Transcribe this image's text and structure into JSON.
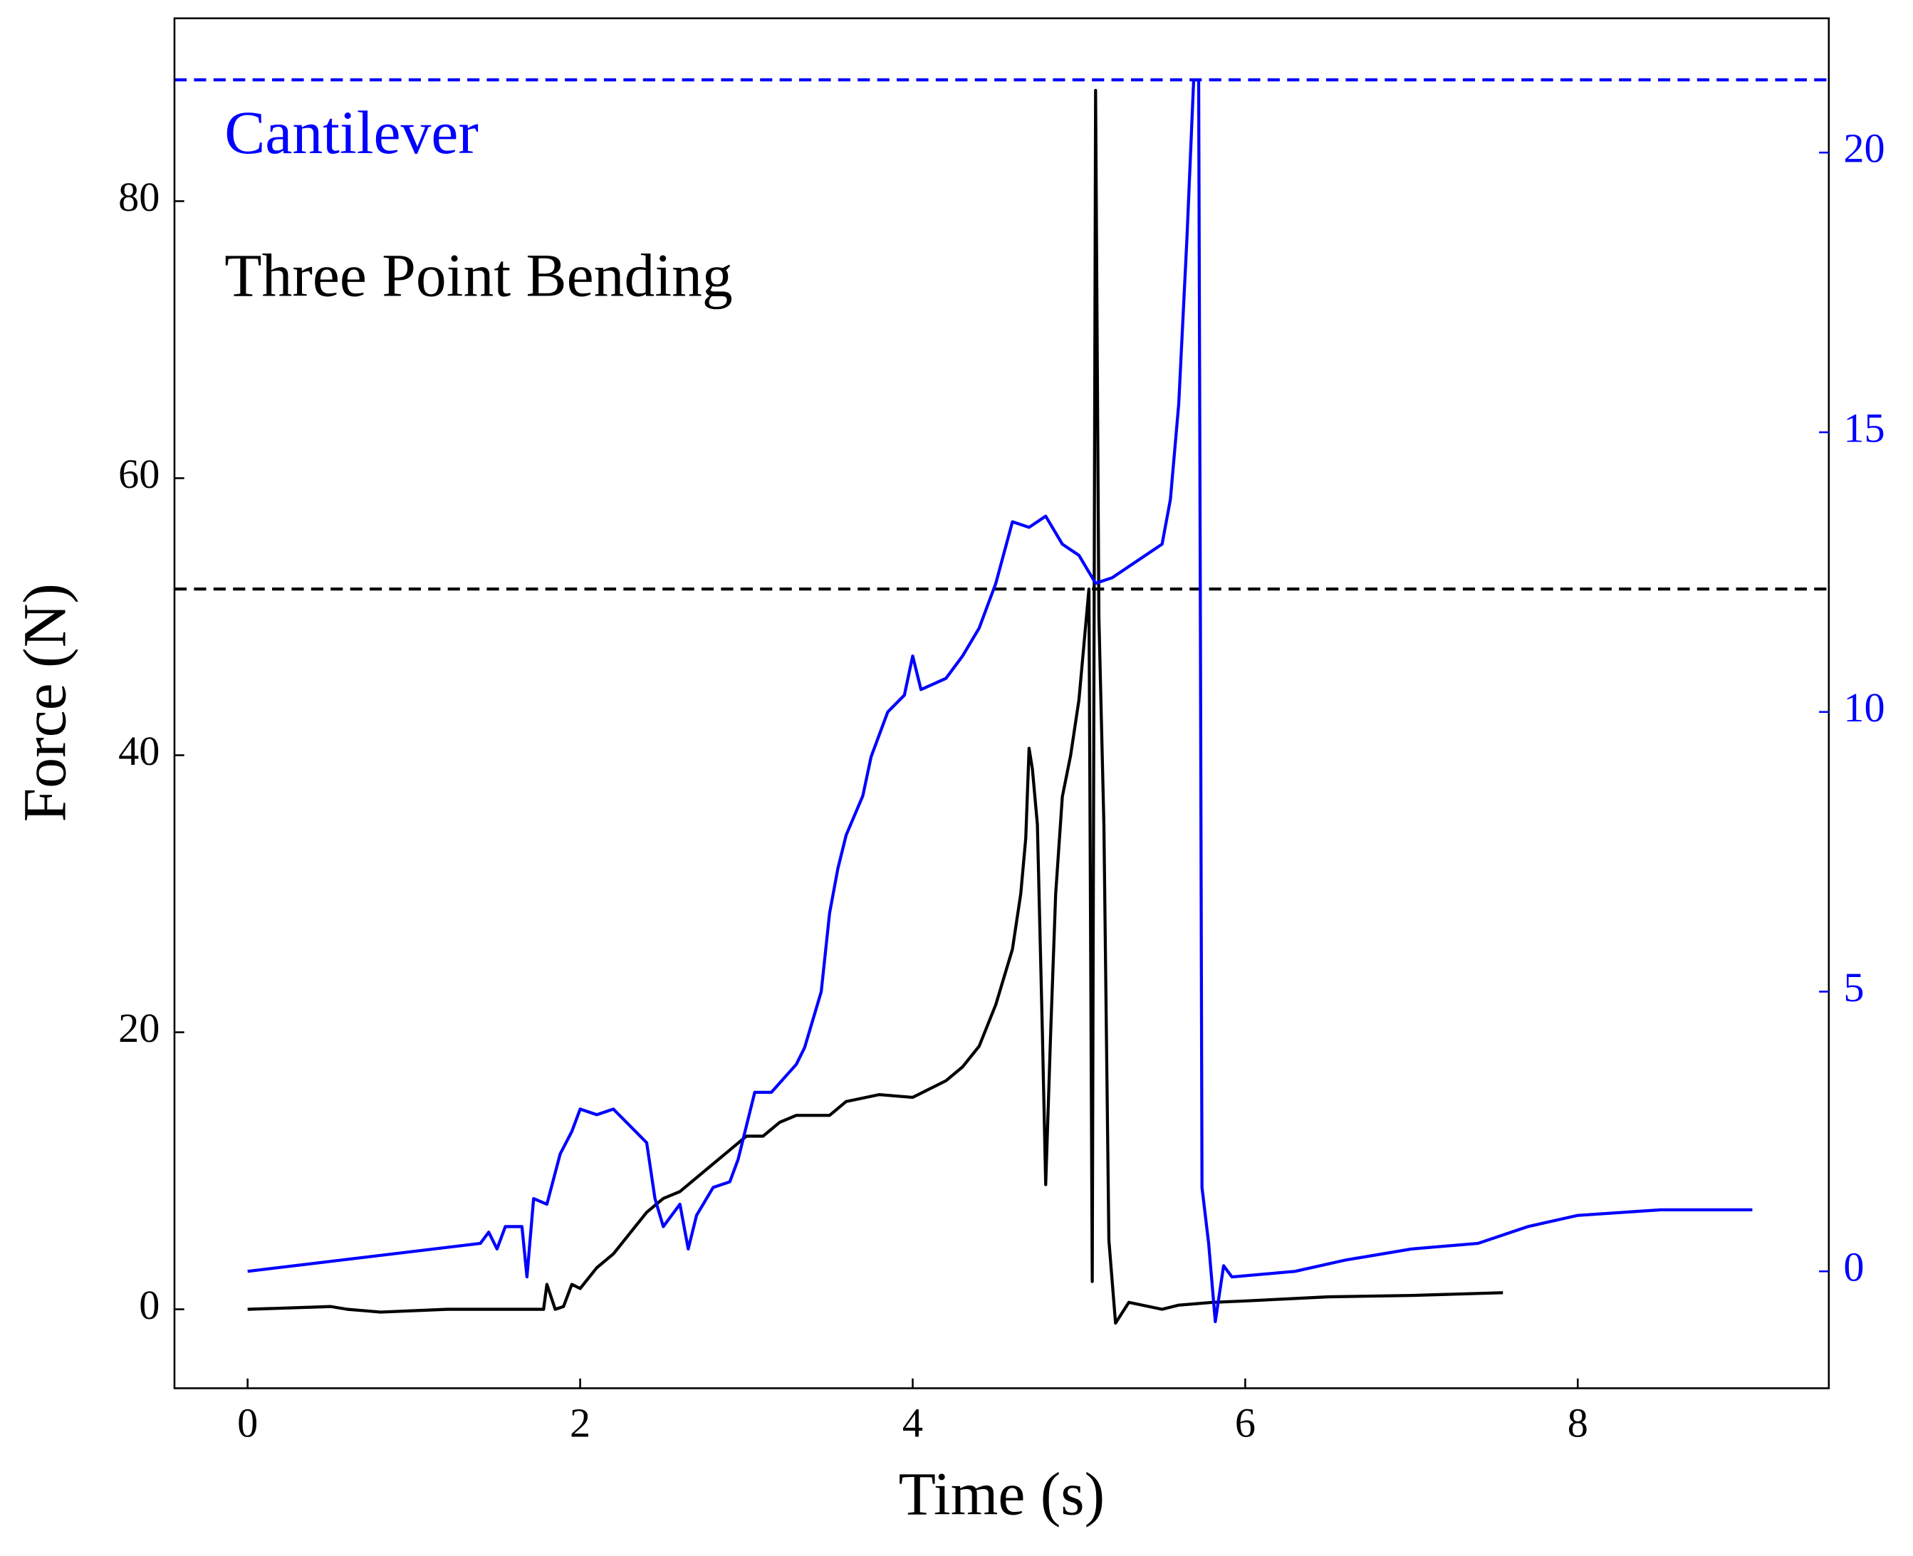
{
  "chart_data": {
    "type": "line",
    "xlabel": "Time (s)",
    "ylabel": "Force (N)",
    "xlim": [
      -0.44,
      9.51
    ],
    "ylim": [
      -5.7,
      93.2
    ],
    "y2lim": [
      -2.09,
      22.4
    ],
    "xticks": [
      0,
      2,
      4,
      6,
      8
    ],
    "yticks": [
      0,
      20,
      40,
      60,
      80
    ],
    "y2ticks": [
      0,
      5,
      10,
      15,
      20
    ],
    "y2_color": "#0000ff",
    "reference_lines": [
      {
        "value": 52.0,
        "color": "#000000"
      },
      {
        "value": 21.3,
        "color": "#0000ff",
        "axis": "y2"
      }
    ],
    "series": [
      {
        "name": "Three Point Bending",
        "color": "#000000",
        "x": [
          0,
          0.5,
          0.6,
          0.8,
          1.2,
          1.78,
          1.8,
          1.85,
          1.9,
          1.95,
          2.0,
          2.1,
          2.2,
          2.3,
          2.4,
          2.5,
          2.6,
          2.7,
          2.8,
          2.9,
          3.0,
          3.1,
          3.2,
          3.3,
          3.5,
          3.6,
          3.8,
          4.0,
          4.2,
          4.3,
          4.4,
          4.5,
          4.6,
          4.65,
          4.68,
          4.7,
          4.72,
          4.75,
          4.78,
          4.8,
          4.83,
          4.86,
          4.9,
          4.95,
          5.0,
          5.03,
          5.06,
          5.08,
          5.1,
          5.12,
          5.15,
          5.18,
          5.22,
          5.3,
          5.5,
          5.6,
          5.8,
          6.0,
          6.5,
          7.0,
          7.55
        ],
        "values": [
          0,
          0.2,
          0,
          -0.2,
          0,
          0,
          1.8,
          0,
          0.2,
          1.8,
          1.5,
          3,
          4,
          5.5,
          7,
          8,
          8.5,
          9.5,
          10.5,
          11.5,
          12.5,
          12.5,
          13.5,
          14,
          14,
          15,
          15.5,
          15.3,
          16.5,
          17.5,
          19,
          22,
          26,
          30,
          34,
          40.5,
          39,
          35,
          20,
          9,
          20,
          30,
          37,
          40,
          44,
          48,
          52,
          2,
          88,
          50,
          35,
          5,
          -1,
          0.5,
          0,
          0.3,
          0.5,
          0.6,
          0.9,
          1,
          1.2
        ]
      },
      {
        "name": "Cantilever",
        "color": "#0000ff",
        "axis": "y2",
        "x": [
          0,
          1.4,
          1.45,
          1.5,
          1.55,
          1.65,
          1.68,
          1.72,
          1.8,
          1.88,
          1.95,
          2.0,
          2.1,
          2.2,
          2.3,
          2.4,
          2.45,
          2.5,
          2.6,
          2.65,
          2.7,
          2.8,
          2.9,
          2.95,
          3.05,
          3.15,
          3.3,
          3.35,
          3.45,
          3.5,
          3.55,
          3.6,
          3.7,
          3.75,
          3.85,
          3.95,
          4.0,
          4.05,
          4.2,
          4.3,
          4.4,
          4.5,
          4.6,
          4.7,
          4.8,
          4.9,
          5.0,
          5.1,
          5.2,
          5.3,
          5.4,
          5.5,
          5.55,
          5.6,
          5.65,
          5.69,
          5.72,
          5.73,
          5.74,
          5.78,
          5.82,
          5.87,
          5.92,
          6.3,
          6.6,
          7.0,
          7.4,
          7.7,
          8.0,
          8.5,
          9.05
        ],
        "values": [
          0,
          0.5,
          0.7,
          0.4,
          0.8,
          0.8,
          -0.1,
          1.3,
          1.2,
          2.1,
          2.5,
          2.9,
          2.8,
          2.9,
          2.6,
          2.3,
          1.3,
          0.8,
          1.2,
          0.4,
          1.0,
          1.5,
          1.6,
          2.0,
          3.2,
          3.2,
          3.7,
          4.0,
          5.0,
          6.4,
          7.2,
          7.8,
          8.5,
          9.2,
          10.0,
          10.3,
          11.0,
          10.4,
          10.6,
          11.0,
          11.5,
          12.3,
          13.4,
          13.3,
          13.5,
          13.0,
          12.8,
          12.3,
          12.4,
          12.6,
          12.8,
          13.0,
          13.8,
          15.5,
          18.5,
          21.3,
          21.3,
          12,
          1.5,
          0.5,
          -0.9,
          0.1,
          -0.1,
          0,
          0.2,
          0.4,
          0.5,
          0.8,
          1.0,
          1.1,
          1.1
        ]
      }
    ]
  }
}
